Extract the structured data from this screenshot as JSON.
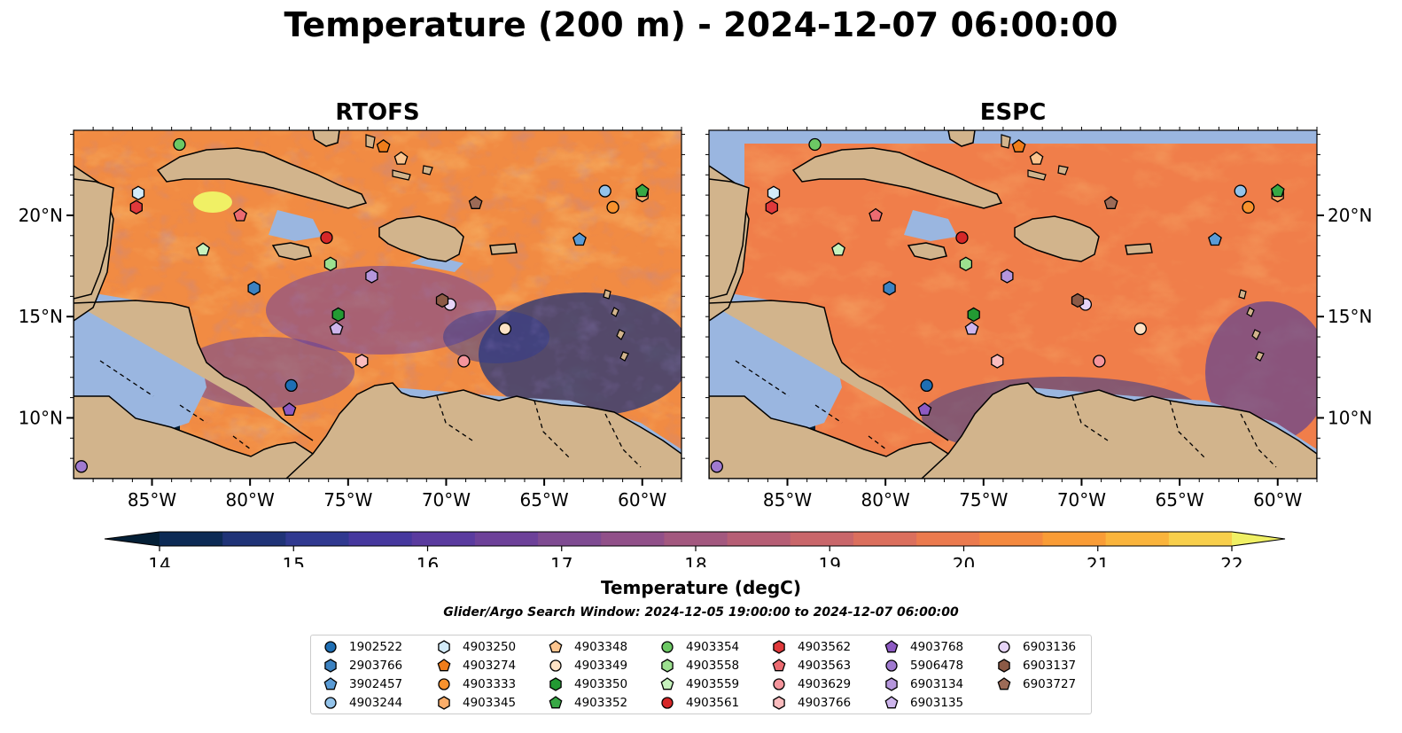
{
  "title": "Temperature (200 m) - 2024-12-07 06:00:00",
  "panels": [
    {
      "title": "RTOFS"
    },
    {
      "title": "ESPC"
    }
  ],
  "axes": {
    "lon_ticks": [
      "85°W",
      "80°W",
      "75°W",
      "70°W",
      "65°W",
      "60°W"
    ],
    "lat_ticks": [
      "20°N",
      "15°N",
      "10°N"
    ]
  },
  "colorbar": {
    "label": "Temperature (degC)",
    "ticks": [
      "14",
      "15",
      "16",
      "17",
      "18",
      "19",
      "20",
      "21",
      "22"
    ],
    "min": 14,
    "max": 22,
    "extend": "both",
    "colors": [
      "#041f36",
      "#0c2a55",
      "#1f3377",
      "#303990",
      "#46389e",
      "#5a3b9f",
      "#6d4199",
      "#7f4b92",
      "#915089",
      "#a3587f",
      "#b65e75",
      "#c9666a",
      "#db6f5d",
      "#eb7a4e",
      "#f4893f",
      "#f99c36",
      "#fab43c",
      "#f8cf4c",
      "#f0f065"
    ]
  },
  "search_window": "Glider/Argo Search Window: 2024-12-05 19:00:00 to 2024-12-07 06:00:00",
  "legend": {
    "items": [
      {
        "id": "1902522",
        "marker": "circle",
        "color": "#1f6fb4"
      },
      {
        "id": "2903766",
        "marker": "hexagon",
        "color": "#3c82c1"
      },
      {
        "id": "3902457",
        "marker": "pentagon",
        "color": "#5a9bd5"
      },
      {
        "id": "4903244",
        "marker": "circle",
        "color": "#93c3ea"
      },
      {
        "id": "4903250",
        "marker": "hexagon",
        "color": "#d3ebf8"
      },
      {
        "id": "4903274",
        "marker": "pentagon",
        "color": "#f07d1a"
      },
      {
        "id": "4903333",
        "marker": "circle",
        "color": "#f8922d"
      },
      {
        "id": "4903345",
        "marker": "hexagon",
        "color": "#fcae6a"
      },
      {
        "id": "4903348",
        "marker": "pentagon",
        "color": "#fcc48e"
      },
      {
        "id": "4903349",
        "marker": "circle",
        "color": "#fde2c5"
      },
      {
        "id": "4903350",
        "marker": "hexagon",
        "color": "#239a33"
      },
      {
        "id": "4903352",
        "marker": "pentagon",
        "color": "#38a845"
      },
      {
        "id": "4903354",
        "marker": "circle",
        "color": "#6cc864"
      },
      {
        "id": "4903558",
        "marker": "hexagon",
        "color": "#9ce08f"
      },
      {
        "id": "4903559",
        "marker": "pentagon",
        "color": "#c6f2bd"
      },
      {
        "id": "4903561",
        "marker": "circle",
        "color": "#d62728"
      },
      {
        "id": "4903562",
        "marker": "hexagon",
        "color": "#e0393b"
      },
      {
        "id": "4903563",
        "marker": "pentagon",
        "color": "#ec6b71"
      },
      {
        "id": "4903629",
        "marker": "circle",
        "color": "#f4959c"
      },
      {
        "id": "4903766",
        "marker": "hexagon",
        "color": "#fbbcbe"
      },
      {
        "id": "4903768",
        "marker": "pentagon",
        "color": "#8d5ac2"
      },
      {
        "id": "5906478",
        "marker": "circle",
        "color": "#a07ad0"
      },
      {
        "id": "6903134",
        "marker": "hexagon",
        "color": "#b596dc"
      },
      {
        "id": "6903135",
        "marker": "pentagon",
        "color": "#cdb5ec"
      },
      {
        "id": "6903136",
        "marker": "circle",
        "color": "#e6d4f7"
      },
      {
        "id": "6903137",
        "marker": "hexagon",
        "color": "#8c5a46"
      },
      {
        "id": "6903727",
        "marker": "pentagon",
        "color": "#9c6b57"
      }
    ]
  },
  "observations": [
    {
      "id": "1902522",
      "lon": -77.9,
      "lat": 11.6
    },
    {
      "id": "2903766",
      "lon": -79.8,
      "lat": 16.4
    },
    {
      "id": "3902457",
      "lon": -63.2,
      "lat": 18.8
    },
    {
      "id": "4903244",
      "lon": -61.9,
      "lat": 21.2
    },
    {
      "id": "4903250",
      "lon": -85.7,
      "lat": 21.1
    },
    {
      "id": "4903274",
      "lon": -73.2,
      "lat": 23.4
    },
    {
      "id": "4903333",
      "lon": -61.5,
      "lat": 20.4
    },
    {
      "id": "4903345",
      "lon": -60.0,
      "lat": 21.0
    },
    {
      "id": "4903348",
      "lon": -72.3,
      "lat": 22.8
    },
    {
      "id": "4903349",
      "lon": -67.0,
      "lat": 14.4
    },
    {
      "id": "4903350",
      "lon": -75.5,
      "lat": 15.1
    },
    {
      "id": "4903352",
      "lon": -60.0,
      "lat": 21.2
    },
    {
      "id": "4903354",
      "lon": -83.6,
      "lat": 23.5
    },
    {
      "id": "4903558",
      "lon": -75.9,
      "lat": 17.6
    },
    {
      "id": "4903559",
      "lon": -82.4,
      "lat": 18.3
    },
    {
      "id": "4903561",
      "lon": -76.1,
      "lat": 18.9
    },
    {
      "id": "4903562",
      "lon": -85.8,
      "lat": 20.4
    },
    {
      "id": "4903563",
      "lon": -80.5,
      "lat": 20.0
    },
    {
      "id": "4903629",
      "lon": -69.1,
      "lat": 12.8
    },
    {
      "id": "4903766",
      "lon": -74.3,
      "lat": 12.8
    },
    {
      "id": "4903768",
      "lon": -78.0,
      "lat": 10.4
    },
    {
      "id": "5906478",
      "lon": -88.6,
      "lat": 7.6
    },
    {
      "id": "6903134",
      "lon": -73.8,
      "lat": 17.0
    },
    {
      "id": "6903135",
      "lon": -75.6,
      "lat": 14.4
    },
    {
      "id": "6903136",
      "lon": -69.8,
      "lat": 15.6
    },
    {
      "id": "6903137",
      "lon": -70.2,
      "lat": 15.8
    },
    {
      "id": "6903727",
      "lon": -68.5,
      "lat": 20.6
    }
  ]
}
